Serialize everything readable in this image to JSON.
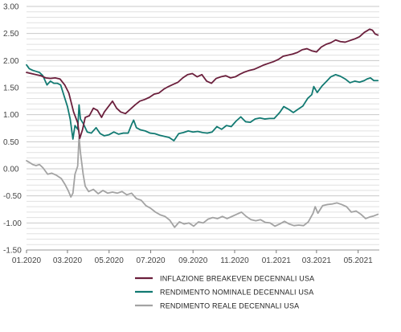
{
  "chart_data": {
    "type": "line",
    "title": "",
    "xlabel": "",
    "ylabel": "",
    "ylim": [
      -1.5,
      3.0
    ],
    "yticks": [
      "3.00",
      "2.50",
      "2.00",
      "1.50",
      "1.00",
      "0.50",
      "0.00",
      "-0.50",
      "-1.00",
      "-1.50"
    ],
    "xlim": [
      "2020-01-01",
      "2021-06-01"
    ],
    "xticks": [
      {
        "date": "2020-01-01",
        "label": "01.2020"
      },
      {
        "date": "2020-03-01",
        "label": "03.2020"
      },
      {
        "date": "2020-05-01",
        "label": "05.2020"
      },
      {
        "date": "2020-07-01",
        "label": "07.2020"
      },
      {
        "date": "2020-09-01",
        "label": "09.2020"
      },
      {
        "date": "2020-11-01",
        "label": "11.2020"
      },
      {
        "date": "2021-01-01",
        "label": "01.2021"
      },
      {
        "date": "2021-03-01",
        "label": "03.2021"
      },
      {
        "date": "2021-05-01",
        "label": "05.2021"
      }
    ],
    "grid": "horizontal",
    "legend_position": "bottom",
    "series": [
      {
        "name": "INFLAZIONE BREAKEVEN DECENNALI USA",
        "color": "#6b1f3c",
        "points": [
          [
            "2020-01-01",
            1.78
          ],
          [
            "2020-01-08",
            1.76
          ],
          [
            "2020-01-15",
            1.74
          ],
          [
            "2020-01-22",
            1.72
          ],
          [
            "2020-01-29",
            1.68
          ],
          [
            "2020-02-05",
            1.67
          ],
          [
            "2020-02-12",
            1.68
          ],
          [
            "2020-02-19",
            1.66
          ],
          [
            "2020-02-26",
            1.55
          ],
          [
            "2020-03-03",
            1.4
          ],
          [
            "2020-03-06",
            1.25
          ],
          [
            "2020-03-10",
            1.05
          ],
          [
            "2020-03-13",
            0.95
          ],
          [
            "2020-03-16",
            0.85
          ],
          [
            "2020-03-19",
            0.56
          ],
          [
            "2020-03-23",
            0.72
          ],
          [
            "2020-03-27",
            0.95
          ],
          [
            "2020-04-02",
            0.98
          ],
          [
            "2020-04-08",
            1.12
          ],
          [
            "2020-04-14",
            1.08
          ],
          [
            "2020-04-20",
            0.95
          ],
          [
            "2020-04-24",
            1.05
          ],
          [
            "2020-04-30",
            1.15
          ],
          [
            "2020-05-06",
            1.25
          ],
          [
            "2020-05-12",
            1.12
          ],
          [
            "2020-05-18",
            1.05
          ],
          [
            "2020-05-25",
            1.02
          ],
          [
            "2020-06-01",
            1.1
          ],
          [
            "2020-06-08",
            1.18
          ],
          [
            "2020-06-15",
            1.25
          ],
          [
            "2020-06-22",
            1.28
          ],
          [
            "2020-06-29",
            1.32
          ],
          [
            "2020-07-06",
            1.38
          ],
          [
            "2020-07-13",
            1.4
          ],
          [
            "2020-07-20",
            1.47
          ],
          [
            "2020-07-27",
            1.52
          ],
          [
            "2020-08-03",
            1.56
          ],
          [
            "2020-08-10",
            1.6
          ],
          [
            "2020-08-17",
            1.68
          ],
          [
            "2020-08-24",
            1.74
          ],
          [
            "2020-08-31",
            1.76
          ],
          [
            "2020-09-07",
            1.7
          ],
          [
            "2020-09-14",
            1.74
          ],
          [
            "2020-09-21",
            1.62
          ],
          [
            "2020-09-28",
            1.58
          ],
          [
            "2020-10-05",
            1.67
          ],
          [
            "2020-10-12",
            1.7
          ],
          [
            "2020-10-19",
            1.72
          ],
          [
            "2020-10-26",
            1.68
          ],
          [
            "2020-11-02",
            1.7
          ],
          [
            "2020-11-09",
            1.75
          ],
          [
            "2020-11-16",
            1.79
          ],
          [
            "2020-11-23",
            1.82
          ],
          [
            "2020-11-30",
            1.84
          ],
          [
            "2020-12-07",
            1.88
          ],
          [
            "2020-12-14",
            1.92
          ],
          [
            "2020-12-21",
            1.95
          ],
          [
            "2020-12-28",
            1.98
          ],
          [
            "2021-01-04",
            2.02
          ],
          [
            "2021-01-11",
            2.08
          ],
          [
            "2021-01-18",
            2.1
          ],
          [
            "2021-01-25",
            2.12
          ],
          [
            "2021-02-01",
            2.15
          ],
          [
            "2021-02-08",
            2.2
          ],
          [
            "2021-02-15",
            2.22
          ],
          [
            "2021-02-22",
            2.18
          ],
          [
            "2021-03-01",
            2.16
          ],
          [
            "2021-03-08",
            2.25
          ],
          [
            "2021-03-15",
            2.3
          ],
          [
            "2021-03-22",
            2.33
          ],
          [
            "2021-03-29",
            2.38
          ],
          [
            "2021-04-05",
            2.35
          ],
          [
            "2021-04-12",
            2.34
          ],
          [
            "2021-04-19",
            2.37
          ],
          [
            "2021-04-26",
            2.4
          ],
          [
            "2021-05-03",
            2.44
          ],
          [
            "2021-05-10",
            2.52
          ],
          [
            "2021-05-14",
            2.55
          ],
          [
            "2021-05-18",
            2.58
          ],
          [
            "2021-05-22",
            2.56
          ],
          [
            "2021-05-26",
            2.49
          ],
          [
            "2021-05-30",
            2.47
          ]
        ]
      },
      {
        "name": "RENDIMENTO NOMINALE DECENNALI USA",
        "color": "#127a72",
        "points": [
          [
            "2020-01-01",
            1.92
          ],
          [
            "2020-01-05",
            1.85
          ],
          [
            "2020-01-10",
            1.82
          ],
          [
            "2020-01-15",
            1.8
          ],
          [
            "2020-01-20",
            1.78
          ],
          [
            "2020-01-25",
            1.72
          ],
          [
            "2020-01-31",
            1.55
          ],
          [
            "2020-02-05",
            1.62
          ],
          [
            "2020-02-10",
            1.58
          ],
          [
            "2020-02-15",
            1.58
          ],
          [
            "2020-02-20",
            1.55
          ],
          [
            "2020-02-25",
            1.35
          ],
          [
            "2020-03-01",
            1.15
          ],
          [
            "2020-03-05",
            0.92
          ],
          [
            "2020-03-09",
            0.55
          ],
          [
            "2020-03-12",
            0.8
          ],
          [
            "2020-03-16",
            0.73
          ],
          [
            "2020-03-18",
            1.18
          ],
          [
            "2020-03-20",
            0.92
          ],
          [
            "2020-03-24",
            0.84
          ],
          [
            "2020-03-30",
            0.68
          ],
          [
            "2020-04-05",
            0.66
          ],
          [
            "2020-04-12",
            0.76
          ],
          [
            "2020-04-18",
            0.65
          ],
          [
            "2020-04-24",
            0.61
          ],
          [
            "2020-05-01",
            0.63
          ],
          [
            "2020-05-08",
            0.68
          ],
          [
            "2020-05-15",
            0.64
          ],
          [
            "2020-05-22",
            0.66
          ],
          [
            "2020-05-29",
            0.66
          ],
          [
            "2020-06-03",
            0.82
          ],
          [
            "2020-06-06",
            0.9
          ],
          [
            "2020-06-10",
            0.76
          ],
          [
            "2020-06-16",
            0.72
          ],
          [
            "2020-06-23",
            0.7
          ],
          [
            "2020-06-30",
            0.66
          ],
          [
            "2020-07-07",
            0.65
          ],
          [
            "2020-07-14",
            0.62
          ],
          [
            "2020-07-21",
            0.6
          ],
          [
            "2020-07-28",
            0.58
          ],
          [
            "2020-08-04",
            0.52
          ],
          [
            "2020-08-11",
            0.65
          ],
          [
            "2020-08-18",
            0.67
          ],
          [
            "2020-08-25",
            0.7
          ],
          [
            "2020-09-01",
            0.68
          ],
          [
            "2020-09-08",
            0.69
          ],
          [
            "2020-09-15",
            0.67
          ],
          [
            "2020-09-22",
            0.66
          ],
          [
            "2020-09-29",
            0.68
          ],
          [
            "2020-10-06",
            0.78
          ],
          [
            "2020-10-13",
            0.73
          ],
          [
            "2020-10-20",
            0.8
          ],
          [
            "2020-10-27",
            0.78
          ],
          [
            "2020-11-03",
            0.88
          ],
          [
            "2020-11-10",
            0.96
          ],
          [
            "2020-11-17",
            0.87
          ],
          [
            "2020-11-24",
            0.86
          ],
          [
            "2020-12-01",
            0.92
          ],
          [
            "2020-12-08",
            0.94
          ],
          [
            "2020-12-15",
            0.92
          ],
          [
            "2020-12-22",
            0.93
          ],
          [
            "2020-12-29",
            0.93
          ],
          [
            "2021-01-06",
            1.04
          ],
          [
            "2021-01-12",
            1.15
          ],
          [
            "2021-01-19",
            1.1
          ],
          [
            "2021-01-26",
            1.04
          ],
          [
            "2021-02-02",
            1.1
          ],
          [
            "2021-02-09",
            1.16
          ],
          [
            "2021-02-16",
            1.3
          ],
          [
            "2021-02-22",
            1.37
          ],
          [
            "2021-02-25",
            1.52
          ],
          [
            "2021-03-02",
            1.41
          ],
          [
            "2021-03-09",
            1.53
          ],
          [
            "2021-03-16",
            1.62
          ],
          [
            "2021-03-22",
            1.7
          ],
          [
            "2021-03-29",
            1.74
          ],
          [
            "2021-04-05",
            1.71
          ],
          [
            "2021-04-12",
            1.66
          ],
          [
            "2021-04-19",
            1.59
          ],
          [
            "2021-04-26",
            1.62
          ],
          [
            "2021-05-03",
            1.6
          ],
          [
            "2021-05-10",
            1.63
          ],
          [
            "2021-05-14",
            1.66
          ],
          [
            "2021-05-19",
            1.68
          ],
          [
            "2021-05-24",
            1.63
          ],
          [
            "2021-05-30",
            1.63
          ]
        ]
      },
      {
        "name": "RENDIMENTO REALE DECENNALI USA",
        "color": "#a3a3a3",
        "points": [
          [
            "2020-01-01",
            0.15
          ],
          [
            "2020-01-05",
            0.12
          ],
          [
            "2020-01-10",
            0.08
          ],
          [
            "2020-01-15",
            0.06
          ],
          [
            "2020-01-20",
            0.08
          ],
          [
            "2020-01-25",
            0.02
          ],
          [
            "2020-02-01",
            -0.1
          ],
          [
            "2020-02-07",
            -0.08
          ],
          [
            "2020-02-14",
            -0.12
          ],
          [
            "2020-02-21",
            -0.18
          ],
          [
            "2020-02-26",
            -0.28
          ],
          [
            "2020-03-02",
            -0.4
          ],
          [
            "2020-03-06",
            -0.52
          ],
          [
            "2020-03-09",
            -0.45
          ],
          [
            "2020-03-12",
            -0.1
          ],
          [
            "2020-03-16",
            0.05
          ],
          [
            "2020-03-18",
            0.6
          ],
          [
            "2020-03-20",
            0.3
          ],
          [
            "2020-03-24",
            -0.1
          ],
          [
            "2020-03-27",
            -0.32
          ],
          [
            "2020-04-01",
            -0.42
          ],
          [
            "2020-04-08",
            -0.38
          ],
          [
            "2020-04-15",
            -0.46
          ],
          [
            "2020-04-22",
            -0.4
          ],
          [
            "2020-04-29",
            -0.45
          ],
          [
            "2020-05-06",
            -0.43
          ],
          [
            "2020-05-13",
            -0.45
          ],
          [
            "2020-05-20",
            -0.42
          ],
          [
            "2020-05-27",
            -0.48
          ],
          [
            "2020-06-03",
            -0.45
          ],
          [
            "2020-06-10",
            -0.55
          ],
          [
            "2020-06-17",
            -0.58
          ],
          [
            "2020-06-24",
            -0.68
          ],
          [
            "2020-07-01",
            -0.73
          ],
          [
            "2020-07-08",
            -0.8
          ],
          [
            "2020-07-15",
            -0.85
          ],
          [
            "2020-07-22",
            -0.88
          ],
          [
            "2020-07-29",
            -0.95
          ],
          [
            "2020-08-05",
            -1.08
          ],
          [
            "2020-08-12",
            -0.98
          ],
          [
            "2020-08-19",
            -1.02
          ],
          [
            "2020-08-26",
            -1.0
          ],
          [
            "2020-09-02",
            -1.06
          ],
          [
            "2020-09-09",
            -0.98
          ],
          [
            "2020-09-16",
            -1.0
          ],
          [
            "2020-09-23",
            -0.93
          ],
          [
            "2020-09-30",
            -0.9
          ],
          [
            "2020-10-07",
            -0.92
          ],
          [
            "2020-10-14",
            -0.88
          ],
          [
            "2020-10-21",
            -0.92
          ],
          [
            "2020-10-28",
            -0.88
          ],
          [
            "2020-11-04",
            -0.84
          ],
          [
            "2020-11-11",
            -0.8
          ],
          [
            "2020-11-18",
            -0.88
          ],
          [
            "2020-11-25",
            -0.94
          ],
          [
            "2020-12-02",
            -0.96
          ],
          [
            "2020-12-09",
            -0.94
          ],
          [
            "2020-12-16",
            -0.99
          ],
          [
            "2020-12-23",
            -1.0
          ],
          [
            "2020-12-30",
            -1.06
          ],
          [
            "2021-01-06",
            -1.02
          ],
          [
            "2021-01-13",
            -0.97
          ],
          [
            "2021-01-20",
            -1.02
          ],
          [
            "2021-01-27",
            -1.05
          ],
          [
            "2021-02-03",
            -1.04
          ],
          [
            "2021-02-10",
            -1.05
          ],
          [
            "2021-02-17",
            -0.98
          ],
          [
            "2021-02-24",
            -0.82
          ],
          [
            "2021-02-27",
            -0.7
          ],
          [
            "2021-03-03",
            -0.82
          ],
          [
            "2021-03-10",
            -0.68
          ],
          [
            "2021-03-17",
            -0.66
          ],
          [
            "2021-03-24",
            -0.65
          ],
          [
            "2021-03-31",
            -0.63
          ],
          [
            "2021-04-07",
            -0.66
          ],
          [
            "2021-04-14",
            -0.7
          ],
          [
            "2021-04-21",
            -0.8
          ],
          [
            "2021-04-28",
            -0.78
          ],
          [
            "2021-05-05",
            -0.84
          ],
          [
            "2021-05-12",
            -0.92
          ],
          [
            "2021-05-18",
            -0.89
          ],
          [
            "2021-05-24",
            -0.87
          ],
          [
            "2021-05-30",
            -0.84
          ]
        ]
      }
    ]
  }
}
